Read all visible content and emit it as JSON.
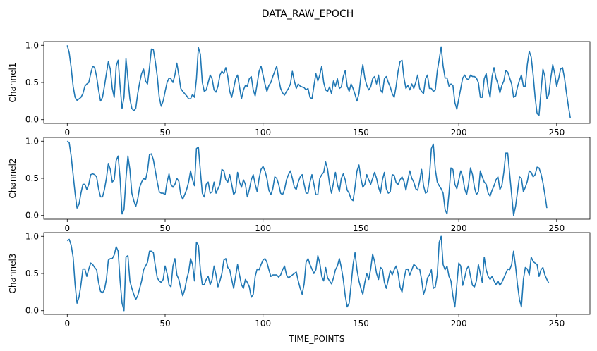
{
  "chart_data": {
    "type": "line",
    "title": "DATA_RAW_EPOCH",
    "xlabel": "TIME_POINTS",
    "xlim": [
      -12,
      267
    ],
    "xticks": [
      0,
      50,
      100,
      150,
      200,
      250
    ],
    "ylim": [
      -0.05,
      1.05
    ],
    "yticks": [
      0.0,
      0.5,
      1.0
    ],
    "grid": false,
    "line_color": "#1f77b4",
    "subplots": [
      {
        "ylabel": "Channel1",
        "x_step": 1,
        "values": [
          1.0,
          0.9,
          0.7,
          0.45,
          0.3,
          0.26,
          0.28,
          0.3,
          0.35,
          0.45,
          0.48,
          0.5,
          0.62,
          0.72,
          0.7,
          0.58,
          0.4,
          0.25,
          0.3,
          0.45,
          0.62,
          0.78,
          0.68,
          0.42,
          0.3,
          0.72,
          0.8,
          0.45,
          0.15,
          0.3,
          0.82,
          0.55,
          0.28,
          0.15,
          0.12,
          0.15,
          0.35,
          0.5,
          0.62,
          0.68,
          0.52,
          0.48,
          0.7,
          0.95,
          0.94,
          0.78,
          0.58,
          0.3,
          0.18,
          0.25,
          0.38,
          0.5,
          0.56,
          0.55,
          0.5,
          0.6,
          0.76,
          0.6,
          0.42,
          0.38,
          0.35,
          0.32,
          0.28,
          0.28,
          0.34,
          0.3,
          0.55,
          0.97,
          0.88,
          0.5,
          0.38,
          0.4,
          0.5,
          0.6,
          0.55,
          0.4,
          0.37,
          0.45,
          0.6,
          0.65,
          0.62,
          0.7,
          0.58,
          0.38,
          0.3,
          0.42,
          0.55,
          0.6,
          0.44,
          0.28,
          0.4,
          0.46,
          0.45,
          0.55,
          0.58,
          0.4,
          0.32,
          0.48,
          0.65,
          0.72,
          0.6,
          0.48,
          0.38,
          0.46,
          0.5,
          0.58,
          0.65,
          0.72,
          0.55,
          0.42,
          0.36,
          0.33,
          0.38,
          0.42,
          0.48,
          0.65,
          0.52,
          0.42,
          0.48,
          0.45,
          0.44,
          0.43,
          0.4,
          0.42,
          0.3,
          0.28,
          0.45,
          0.62,
          0.52,
          0.6,
          0.72,
          0.5,
          0.4,
          0.38,
          0.44,
          0.35,
          0.52,
          0.45,
          0.55,
          0.42,
          0.44,
          0.58,
          0.66,
          0.45,
          0.38,
          0.48,
          0.42,
          0.34,
          0.25,
          0.35,
          0.58,
          0.74,
          0.56,
          0.46,
          0.4,
          0.44,
          0.55,
          0.58,
          0.48,
          0.6,
          0.4,
          0.36,
          0.55,
          0.58,
          0.5,
          0.44,
          0.35,
          0.3,
          0.45,
          0.65,
          0.78,
          0.8,
          0.56,
          0.42,
          0.46,
          0.4,
          0.48,
          0.42,
          0.5,
          0.6,
          0.42,
          0.38,
          0.35,
          0.55,
          0.6,
          0.42,
          0.42,
          0.38,
          0.4,
          0.65,
          0.81,
          0.98,
          0.72,
          0.56,
          0.56,
          0.45,
          0.48,
          0.46,
          0.23,
          0.14,
          0.28,
          0.42,
          0.56,
          0.6,
          0.55,
          0.54,
          0.6,
          0.58,
          0.58,
          0.56,
          0.5,
          0.3,
          0.3,
          0.55,
          0.62,
          0.42,
          0.3,
          0.58,
          0.7,
          0.56,
          0.48,
          0.36,
          0.46,
          0.52,
          0.66,
          0.64,
          0.56,
          0.48,
          0.3,
          0.32,
          0.44,
          0.53,
          0.6,
          0.45,
          0.45,
          0.74,
          0.92,
          0.84,
          0.6,
          0.3,
          0.08,
          0.06,
          0.38,
          0.68,
          0.58,
          0.28,
          0.34,
          0.56,
          0.74,
          0.62,
          0.45,
          0.55,
          0.68,
          0.7,
          0.56,
          0.36,
          0.18,
          0.02
        ]
      },
      {
        "ylabel": "Channel2",
        "x_step": 1,
        "values": [
          1.0,
          0.98,
          0.8,
          0.55,
          0.3,
          0.1,
          0.15,
          0.3,
          0.42,
          0.42,
          0.35,
          0.42,
          0.55,
          0.56,
          0.55,
          0.52,
          0.36,
          0.25,
          0.25,
          0.35,
          0.5,
          0.7,
          0.62,
          0.45,
          0.48,
          0.74,
          0.8,
          0.5,
          0.02,
          0.08,
          0.5,
          0.8,
          0.62,
          0.3,
          0.2,
          0.12,
          0.22,
          0.38,
          0.45,
          0.5,
          0.48,
          0.6,
          0.82,
          0.83,
          0.75,
          0.6,
          0.45,
          0.32,
          0.3,
          0.3,
          0.28,
          0.45,
          0.56,
          0.42,
          0.38,
          0.42,
          0.5,
          0.46,
          0.28,
          0.22,
          0.28,
          0.35,
          0.45,
          0.6,
          0.48,
          0.4,
          0.9,
          0.92,
          0.6,
          0.3,
          0.25,
          0.42,
          0.45,
          0.3,
          0.32,
          0.45,
          0.3,
          0.36,
          0.42,
          0.62,
          0.6,
          0.48,
          0.45,
          0.55,
          0.42,
          0.28,
          0.32,
          0.58,
          0.45,
          0.38,
          0.48,
          0.42,
          0.25,
          0.35,
          0.48,
          0.55,
          0.42,
          0.32,
          0.5,
          0.62,
          0.66,
          0.6,
          0.5,
          0.34,
          0.28,
          0.36,
          0.52,
          0.5,
          0.42,
          0.3,
          0.28,
          0.35,
          0.48,
          0.55,
          0.6,
          0.5,
          0.38,
          0.35,
          0.45,
          0.52,
          0.55,
          0.42,
          0.3,
          0.3,
          0.45,
          0.55,
          0.42,
          0.28,
          0.28,
          0.5,
          0.55,
          0.58,
          0.72,
          0.62,
          0.42,
          0.3,
          0.44,
          0.58,
          0.42,
          0.32,
          0.5,
          0.56,
          0.48,
          0.34,
          0.3,
          0.22,
          0.2,
          0.38,
          0.6,
          0.68,
          0.5,
          0.38,
          0.42,
          0.55,
          0.48,
          0.42,
          0.5,
          0.58,
          0.5,
          0.38,
          0.3,
          0.48,
          0.58,
          0.36,
          0.3,
          0.32,
          0.55,
          0.54,
          0.44,
          0.42,
          0.48,
          0.52,
          0.46,
          0.34,
          0.48,
          0.6,
          0.5,
          0.45,
          0.36,
          0.34,
          0.46,
          0.62,
          0.4,
          0.3,
          0.32,
          0.52,
          0.9,
          0.96,
          0.62,
          0.45,
          0.4,
          0.36,
          0.3,
          0.08,
          0.02,
          0.3,
          0.64,
          0.62,
          0.42,
          0.36,
          0.48,
          0.6,
          0.52,
          0.36,
          0.28,
          0.42,
          0.64,
          0.55,
          0.38,
          0.28,
          0.32,
          0.6,
          0.52,
          0.45,
          0.42,
          0.3,
          0.26,
          0.34,
          0.4,
          0.48,
          0.52,
          0.35,
          0.4,
          0.58,
          0.84,
          0.84,
          0.56,
          0.28,
          0.0,
          0.12,
          0.32,
          0.52,
          0.5,
          0.32,
          0.38,
          0.46,
          0.6,
          0.58,
          0.52,
          0.55,
          0.65,
          0.64,
          0.56,
          0.44,
          0.28,
          0.1
        ]
      },
      {
        "ylabel": "Channel3",
        "x_step": 1,
        "values": [
          0.94,
          0.96,
          0.88,
          0.72,
          0.35,
          0.1,
          0.18,
          0.35,
          0.56,
          0.56,
          0.46,
          0.56,
          0.64,
          0.62,
          0.58,
          0.55,
          0.38,
          0.26,
          0.24,
          0.28,
          0.42,
          0.68,
          0.7,
          0.7,
          0.75,
          0.86,
          0.8,
          0.4,
          0.1,
          0.0,
          0.72,
          0.74,
          0.4,
          0.3,
          0.22,
          0.15,
          0.2,
          0.3,
          0.4,
          0.55,
          0.6,
          0.65,
          0.8,
          0.8,
          0.78,
          0.6,
          0.44,
          0.4,
          0.38,
          0.42,
          0.6,
          0.5,
          0.35,
          0.32,
          0.6,
          0.7,
          0.48,
          0.42,
          0.3,
          0.2,
          0.28,
          0.42,
          0.52,
          0.7,
          0.62,
          0.4,
          0.92,
          0.88,
          0.55,
          0.35,
          0.35,
          0.42,
          0.46,
          0.35,
          0.42,
          0.6,
          0.48,
          0.32,
          0.4,
          0.5,
          0.68,
          0.7,
          0.58,
          0.55,
          0.42,
          0.3,
          0.46,
          0.62,
          0.48,
          0.35,
          0.3,
          0.42,
          0.38,
          0.32,
          0.18,
          0.22,
          0.46,
          0.56,
          0.55,
          0.62,
          0.68,
          0.7,
          0.65,
          0.55,
          0.46,
          0.48,
          0.48,
          0.48,
          0.45,
          0.48,
          0.55,
          0.6,
          0.48,
          0.44,
          0.46,
          0.48,
          0.5,
          0.52,
          0.4,
          0.3,
          0.22,
          0.36,
          0.65,
          0.7,
          0.62,
          0.56,
          0.5,
          0.55,
          0.74,
          0.64,
          0.46,
          0.4,
          0.58,
          0.44,
          0.4,
          0.36,
          0.44,
          0.55,
          0.6,
          0.7,
          0.58,
          0.42,
          0.2,
          0.05,
          0.1,
          0.35,
          0.62,
          0.78,
          0.55,
          0.4,
          0.3,
          0.22,
          0.38,
          0.5,
          0.42,
          0.56,
          0.76,
          0.66,
          0.5,
          0.42,
          0.58,
          0.56,
          0.38,
          0.3,
          0.42,
          0.54,
          0.48,
          0.55,
          0.6,
          0.5,
          0.32,
          0.25,
          0.42,
          0.55,
          0.56,
          0.48,
          0.55,
          0.62,
          0.6,
          0.56,
          0.56,
          0.42,
          0.22,
          0.3,
          0.44,
          0.48,
          0.55,
          0.3,
          0.32,
          0.48,
          0.92,
          1.0,
          0.62,
          0.55,
          0.6,
          0.46,
          0.4,
          0.2,
          0.05,
          0.35,
          0.64,
          0.6,
          0.34,
          0.44,
          0.56,
          0.6,
          0.46,
          0.34,
          0.32,
          0.4,
          0.62,
          0.5,
          0.38,
          0.72,
          0.55,
          0.46,
          0.42,
          0.46,
          0.4,
          0.35,
          0.4,
          0.34,
          0.38,
          0.44,
          0.5,
          0.56,
          0.55,
          0.62,
          0.8,
          0.6,
          0.35,
          0.15,
          0.05,
          0.42,
          0.58,
          0.56,
          0.48,
          0.72,
          0.66,
          0.64,
          0.62,
          0.46,
          0.55,
          0.58,
          0.48,
          0.42,
          0.37
        ]
      }
    ]
  }
}
